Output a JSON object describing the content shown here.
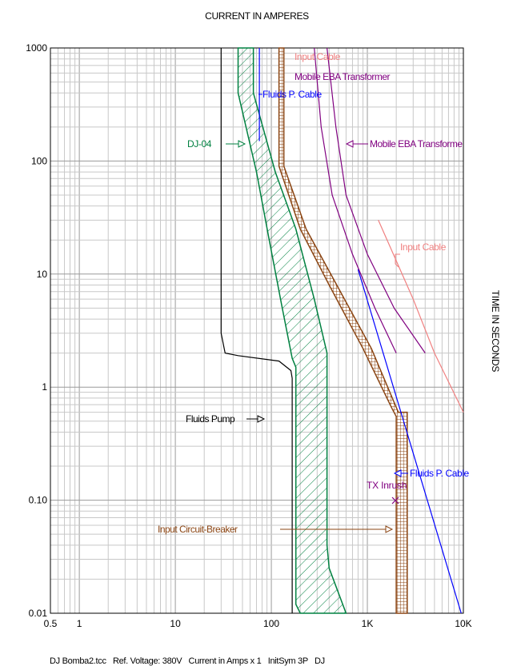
{
  "chart_data": {
    "type": "line",
    "title": "CURRENT IN AMPERES",
    "xlabel": "CURRENT IN AMPERES",
    "ylabel": "TIME IN SECONDS",
    "x_scale": "log",
    "y_scale": "log",
    "xlim": [
      0.5,
      10000
    ],
    "ylim": [
      0.01,
      1000
    ],
    "grid": true,
    "x_ticks": [
      {
        "value": 0.5,
        "label": "0.5"
      },
      {
        "value": 1,
        "label": "1"
      },
      {
        "value": 10,
        "label": "10"
      },
      {
        "value": 100,
        "label": "100"
      },
      {
        "value": 1000,
        "label": "1K"
      },
      {
        "value": 10000,
        "label": "10K"
      }
    ],
    "y_ticks": [
      {
        "value": 1000,
        "label": "1000"
      },
      {
        "value": 100,
        "label": "100"
      },
      {
        "value": 10,
        "label": "10"
      },
      {
        "value": 1,
        "label": "1"
      },
      {
        "value": 0.1,
        "label": "0.10"
      },
      {
        "value": 0.01,
        "label": "0.01"
      }
    ],
    "footer": "DJ Bomba2.tcc   Ref. Voltage: 380V   Current in Amps x 1   InitSym 3P   DJ",
    "colors": {
      "fluids_pump": "#000000",
      "dj04": "#008040",
      "fluids_cable": "#0000ff",
      "input_breaker": "#8b4513",
      "mobile_eba": "#800080",
      "input_cable": "#f08080",
      "tx_inrush": "#800080"
    },
    "series": [
      {
        "name": "Fluids Pump",
        "style": "line",
        "color_key": "fluids_pump",
        "points": [
          [
            30,
            1000
          ],
          [
            30,
            3
          ],
          [
            33,
            2
          ],
          [
            45,
            1.9
          ],
          [
            120,
            1.7
          ],
          [
            160,
            1.4
          ],
          [
            165,
            1.2
          ],
          [
            165,
            0.01
          ]
        ]
      },
      {
        "name": "DJ-04",
        "style": "band",
        "color_key": "dj04",
        "lower": [
          [
            45,
            1000
          ],
          [
            45,
            400
          ],
          [
            70,
            80
          ],
          [
            95,
            20
          ],
          [
            130,
            5
          ],
          [
            165,
            1.8
          ],
          [
            180,
            1.5
          ],
          [
            180,
            0.012
          ],
          [
            200,
            0.01
          ]
        ],
        "upper": [
          [
            65,
            1000
          ],
          [
            65,
            400
          ],
          [
            110,
            80
          ],
          [
            180,
            25
          ],
          [
            280,
            6
          ],
          [
            380,
            2
          ],
          [
            380,
            0.04
          ],
          [
            400,
            0.025
          ],
          [
            600,
            0.01
          ]
        ]
      },
      {
        "name": "Fluids P. Cable",
        "style": "line",
        "color_key": "fluids_cable",
        "points": [
          [
            75,
            1000
          ],
          [
            75,
            150
          ]
        ]
      },
      {
        "name": "Fluids P. Cable",
        "style": "line",
        "color_key": "fluids_cable",
        "points": [
          [
            800,
            11
          ],
          [
            9500,
            0.01
          ]
        ]
      },
      {
        "name": "Input Circuit-Breaker",
        "style": "band",
        "color_key": "input_breaker",
        "lower": [
          [
            120,
            1000
          ],
          [
            120,
            90
          ],
          [
            200,
            25
          ],
          [
            400,
            8
          ],
          [
            900,
            2.2
          ],
          [
            1800,
            0.65
          ],
          [
            2000,
            0.55
          ],
          [
            2000,
            0.01
          ]
        ],
        "upper": [
          [
            135,
            1000
          ],
          [
            135,
            90
          ],
          [
            230,
            25
          ],
          [
            480,
            8
          ],
          [
            1100,
            2.2
          ],
          [
            2100,
            0.6
          ],
          [
            2600,
            0.6
          ],
          [
            2600,
            0.01
          ]
        ]
      },
      {
        "name": "Mobile EBA Transformer",
        "style": "line",
        "color_key": "mobile_eba",
        "points": [
          [
            280,
            1000
          ],
          [
            330,
            200
          ],
          [
            430,
            50
          ],
          [
            700,
            15
          ],
          [
            1200,
            5
          ],
          [
            2000,
            2
          ]
        ]
      },
      {
        "name": "Mobile EBA Transformer",
        "style": "line",
        "color_key": "mobile_eba",
        "points": [
          [
            380,
            1000
          ],
          [
            470,
            200
          ],
          [
            600,
            50
          ],
          [
            1000,
            15
          ],
          [
            1900,
            5
          ],
          [
            4000,
            2
          ]
        ]
      },
      {
        "name": "Input Cable",
        "style": "line",
        "color_key": "input_cable",
        "points": [
          [
            1300,
            30
          ],
          [
            3000,
            6
          ],
          [
            5000,
            2
          ],
          [
            10000,
            0.6
          ]
        ]
      }
    ],
    "points": [
      {
        "name": "TX Inrush",
        "x": 2100,
        "y": 0.1,
        "color_key": "tx_inrush"
      }
    ],
    "annotations": [
      {
        "text": "Input Cable",
        "color_key": "input_cable"
      },
      {
        "text": "Mobile EBA Transformer",
        "color_key": "mobile_eba"
      },
      {
        "text": "Fluids P. Cable",
        "color_key": "fluids_cable"
      },
      {
        "text": "DJ-04",
        "color_key": "dj04"
      },
      {
        "text": "Mobile EBA Transforme",
        "color_key": "mobile_eba"
      },
      {
        "text": "Input Cable",
        "color_key": "input_cable"
      },
      {
        "text": "Fluids Pump",
        "color_key": "fluids_pump"
      },
      {
        "text": "Fluids P. Cable",
        "color_key": "fluids_cable"
      },
      {
        "text": "TX Inrush",
        "color_key": "tx_inrush"
      },
      {
        "text": "Input Circuit-Breaker",
        "color_key": "input_breaker"
      }
    ]
  }
}
